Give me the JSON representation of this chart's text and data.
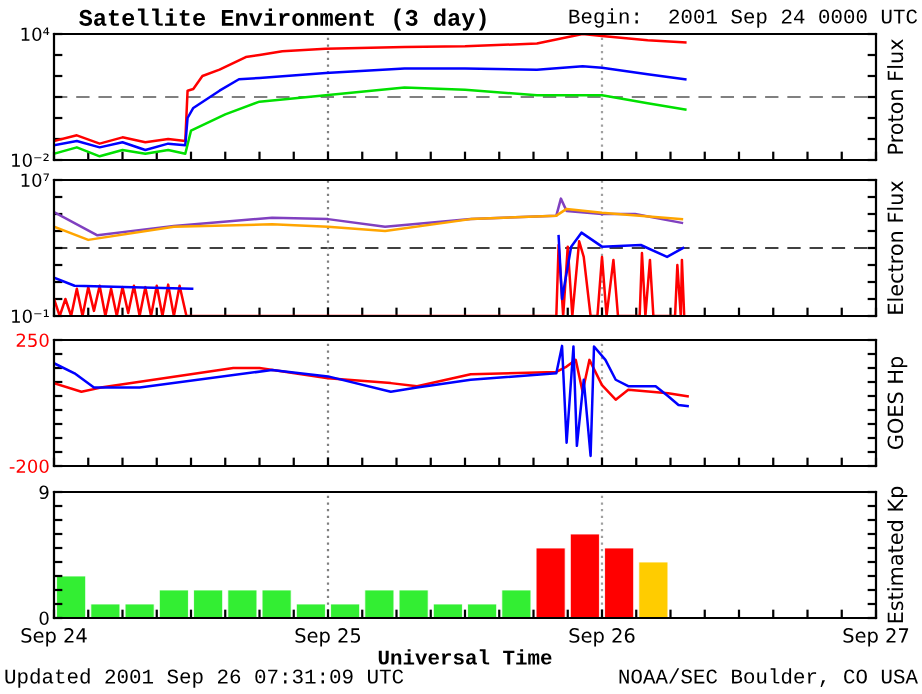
{
  "chart_data": [
    {
      "type": "line",
      "title": "Satellite Environment (3 day)",
      "annotations": [
        "Begin:  2001 Sep 24 0000 UTC"
      ],
      "ylabel": "Proton Flux",
      "log": "y",
      "ylim": [
        0.01,
        10000
      ],
      "yticks": [
        {
          "value": 0.01,
          "label": "10⁻²"
        },
        {
          "value": 0.1,
          "label": null
        },
        {
          "value": 1,
          "label": null
        },
        {
          "value": 10,
          "label": null
        },
        {
          "value": 100,
          "label": null
        },
        {
          "value": 1000,
          "label": null
        },
        {
          "value": 10000,
          "label": "10⁴"
        }
      ],
      "xlim": [
        "2001-09-24T00:00",
        "2001-09-27T00:00"
      ],
      "xticks": [
        {
          "value": "2001-09-24T00:00",
          "label": null
        },
        {
          "value": "2001-09-24T03:00",
          "label": null
        },
        {
          "value": "2001-09-24T06:00",
          "label": null
        },
        {
          "value": "2001-09-24T09:00",
          "label": null
        },
        {
          "value": "2001-09-24T12:00",
          "label": null
        },
        {
          "value": "2001-09-24T15:00",
          "label": null
        },
        {
          "value": "2001-09-24T18:00",
          "label": null
        },
        {
          "value": "2001-09-24T21:00",
          "label": null
        },
        {
          "value": "2001-09-25T00:00",
          "label": null
        },
        {
          "value": "2001-09-25T03:00",
          "label": null
        },
        {
          "value": "2001-09-25T06:00",
          "label": null
        },
        {
          "value": "2001-09-25T09:00",
          "label": null
        },
        {
          "value": "2001-09-25T12:00",
          "label": null
        },
        {
          "value": "2001-09-25T15:00",
          "label": null
        },
        {
          "value": "2001-09-25T18:00",
          "label": null
        },
        {
          "value": "2001-09-25T21:00",
          "label": null
        },
        {
          "value": "2001-09-26T00:00",
          "label": null
        },
        {
          "value": "2001-09-26T03:00",
          "label": null
        },
        {
          "value": "2001-09-26T06:00",
          "label": null
        },
        {
          "value": "2001-09-26T09:00",
          "label": null
        },
        {
          "value": "2001-09-26T12:00",
          "label": null
        },
        {
          "value": "2001-09-26T15:00",
          "label": null
        },
        {
          "value": "2001-09-26T18:00",
          "label": null
        },
        {
          "value": "2001-09-26T21:00",
          "label": null
        },
        {
          "value": "2001-09-27T00:00",
          "label": null
        }
      ],
      "tick_labels": "y",
      "grid": false,
      "legend": false,
      "ref_lines": [
        {
          "axis": "y",
          "value": 10,
          "color": "#808080",
          "line_style": "dashed"
        },
        {
          "axis": "x",
          "value": "2001-09-25T00:00",
          "color": "#808080",
          "line_style": "dotted"
        },
        {
          "axis": "x",
          "value": "2001-09-26T00:00",
          "color": "#a0a0a0",
          "line_style": "dotted"
        }
      ],
      "series": [
        {
          "color": "#ff0000",
          "x": [
            "2001-09-24T00:00",
            "2001-09-24T02:00",
            "2001-09-24T04:00",
            "2001-09-24T06:00",
            "2001-09-24T08:00",
            "2001-09-24T10:00",
            "2001-09-24T11:30",
            "2001-09-24T11:42",
            "2001-09-24T12:12",
            "2001-09-24T13:00",
            "2001-09-24T14:30",
            "2001-09-24T16:48",
            "2001-09-24T18:00",
            "2001-09-24T20:00",
            "2001-09-24T23:48",
            "2001-09-25T06:42",
            "2001-09-25T12:00",
            "2001-09-25T18:18",
            "2001-09-25T22:18",
            "2001-09-26T00:00",
            "2001-09-26T04:00",
            "2001-09-26T07:18"
          ],
          "values": [
            0.08,
            0.15,
            0.06,
            0.12,
            0.07,
            0.1,
            0.08,
            20,
            24,
            100,
            200,
            800,
            1000,
            1500,
            2000,
            2400,
            2600,
            3500,
            10000,
            8000,
            5000,
            4000
          ]
        },
        {
          "color": "#0000ff",
          "x": [
            "2001-09-24T00:00",
            "2001-09-24T02:00",
            "2001-09-24T04:00",
            "2001-09-24T06:00",
            "2001-09-24T08:00",
            "2001-09-24T10:00",
            "2001-09-24T11:30",
            "2001-09-24T11:42",
            "2001-09-24T12:12",
            "2001-09-24T14:30",
            "2001-09-24T16:12",
            "2001-09-24T18:00",
            "2001-09-24T23:48",
            "2001-09-25T06:42",
            "2001-09-25T12:00",
            "2001-09-25T18:18",
            "2001-09-25T22:18",
            "2001-09-26T00:00",
            "2001-09-26T04:00",
            "2001-09-26T07:18"
          ],
          "values": [
            0.05,
            0.08,
            0.04,
            0.07,
            0.03,
            0.06,
            0.05,
            1,
            3,
            20,
            70,
            80,
            140,
            230,
            230,
            200,
            290,
            250,
            120,
            70
          ]
        },
        {
          "color": "#00e000",
          "x": [
            "2001-09-24T00:00",
            "2001-09-24T02:00",
            "2001-09-24T04:00",
            "2001-09-24T06:00",
            "2001-09-24T08:00",
            "2001-09-24T10:00",
            "2001-09-24T11:30",
            "2001-09-24T12:00",
            "2001-09-24T15:00",
            "2001-09-24T18:00",
            "2001-09-24T23:48",
            "2001-09-25T06:42",
            "2001-09-25T12:00",
            "2001-09-25T18:18",
            "2001-09-26T00:00",
            "2001-09-26T04:00",
            "2001-09-26T07:18"
          ],
          "values": [
            0.02,
            0.04,
            0.015,
            0.03,
            0.02,
            0.03,
            0.02,
            0.25,
            1.5,
            6,
            12,
            28,
            22,
            12,
            12,
            5,
            2.5
          ]
        }
      ]
    },
    {
      "type": "line",
      "ylabel": "Electron Flux",
      "log": "y",
      "ylim": [
        0.1,
        10000000
      ],
      "yticks": [
        {
          "value": 0.1,
          "label": "10⁻¹"
        },
        {
          "value": 1,
          "label": null
        },
        {
          "value": 10,
          "label": null
        },
        {
          "value": 100,
          "label": null
        },
        {
          "value": 1000,
          "label": null
        },
        {
          "value": 10000,
          "label": null
        },
        {
          "value": 100000,
          "label": null
        },
        {
          "value": 1000000,
          "label": null
        },
        {
          "value": 10000000,
          "label": "10⁷"
        }
      ],
      "xlim": [
        "2001-09-24T00:00",
        "2001-09-27T00:00"
      ],
      "xticks": [
        {
          "value": "2001-09-24T00:00",
          "label": null
        },
        {
          "value": "2001-09-24T03:00",
          "label": null
        },
        {
          "value": "2001-09-24T06:00",
          "label": null
        },
        {
          "value": "2001-09-24T09:00",
          "label": null
        },
        {
          "value": "2001-09-24T12:00",
          "label": null
        },
        {
          "value": "2001-09-24T15:00",
          "label": null
        },
        {
          "value": "2001-09-24T18:00",
          "label": null
        },
        {
          "value": "2001-09-24T21:00",
          "label": null
        },
        {
          "value": "2001-09-25T00:00",
          "label": null
        },
        {
          "value": "2001-09-25T03:00",
          "label": null
        },
        {
          "value": "2001-09-25T06:00",
          "label": null
        },
        {
          "value": "2001-09-25T09:00",
          "label": null
        },
        {
          "value": "2001-09-25T12:00",
          "label": null
        },
        {
          "value": "2001-09-25T15:00",
          "label": null
        },
        {
          "value": "2001-09-25T18:00",
          "label": null
        },
        {
          "value": "2001-09-25T21:00",
          "label": null
        },
        {
          "value": "2001-09-26T00:00",
          "label": null
        },
        {
          "value": "2001-09-26T03:00",
          "label": null
        },
        {
          "value": "2001-09-26T06:00",
          "label": null
        },
        {
          "value": "2001-09-26T09:00",
          "label": null
        },
        {
          "value": "2001-09-26T12:00",
          "label": null
        },
        {
          "value": "2001-09-26T15:00",
          "label": null
        },
        {
          "value": "2001-09-26T18:00",
          "label": null
        },
        {
          "value": "2001-09-26T21:00",
          "label": null
        },
        {
          "value": "2001-09-27T00:00",
          "label": null
        }
      ],
      "tick_labels": "y",
      "grid": false,
      "legend": false,
      "ref_lines": [
        {
          "axis": "y",
          "value": 1000,
          "color": "#404040",
          "line_style": "dashed"
        },
        {
          "axis": "x",
          "value": "2001-09-25T00:00",
          "color": "#808080",
          "line_style": "dotted"
        },
        {
          "axis": "x",
          "value": "2001-09-26T00:00",
          "color": "#a0a0a0",
          "line_style": "dotted"
        }
      ],
      "series": [
        {
          "color": "#8040c0",
          "x": [
            "2001-09-24T00:00",
            "2001-09-24T03:48",
            "2001-09-24T10:30",
            "2001-09-24T19:06",
            "2001-09-25T00:00",
            "2001-09-25T05:00",
            "2001-09-25T12:30",
            "2001-09-25T20:00",
            "2001-09-25T20:24",
            "2001-09-25T20:54",
            "2001-09-26T00:00",
            "2001-09-26T02:54",
            "2001-09-26T07:00"
          ],
          "values": [
            130000,
            5600,
            20000,
            60000,
            50000,
            18000,
            50000,
            80000,
            800000,
            150000,
            100000,
            100000,
            30000
          ]
        },
        {
          "color": "#ffa500",
          "x": [
            "2001-09-24T00:00",
            "2001-09-24T03:00",
            "2001-09-24T10:30",
            "2001-09-24T19:06",
            "2001-09-25T00:00",
            "2001-09-25T05:00",
            "2001-09-25T12:30",
            "2001-09-25T20:00",
            "2001-09-25T20:54",
            "2001-09-26T00:00",
            "2001-09-26T07:00"
          ],
          "values": [
            18000,
            3000,
            18000,
            25000,
            18000,
            10000,
            50000,
            80000,
            200000,
            120000,
            50000
          ]
        },
        {
          "color": "#ff0000",
          "x": [
            "2001-09-24T00:00",
            "2001-09-24T00:30",
            "2001-09-24T01:00",
            "2001-09-24T01:30",
            "2001-09-24T02:00",
            "2001-09-24T02:30",
            "2001-09-24T03:00",
            "2001-09-24T03:30",
            "2001-09-24T04:00",
            "2001-09-24T04:30",
            "2001-09-24T05:00",
            "2001-09-24T05:30",
            "2001-09-24T06:00",
            "2001-09-24T06:30",
            "2001-09-24T07:00",
            "2001-09-24T07:30",
            "2001-09-24T08:00",
            "2001-09-24T08:30",
            "2001-09-24T09:00",
            "2001-09-24T09:30",
            "2001-09-24T10:00",
            "2001-09-24T10:30",
            "2001-09-24T11:00",
            "2001-09-24T11:36",
            "2001-09-25T20:00",
            "2001-09-25T20:12",
            "2001-09-25T20:36",
            "2001-09-25T21:00",
            "2001-09-25T21:24",
            "2001-09-25T22:00",
            "2001-09-25T22:24",
            "2001-09-25T23:00",
            "2001-09-25T23:36",
            "2001-09-26T00:00",
            "2001-09-26T00:24",
            "2001-09-26T01:00",
            "2001-09-26T01:24",
            "2001-09-26T03:18",
            "2001-09-26T03:30",
            "2001-09-26T03:48",
            "2001-09-26T04:12",
            "2001-09-26T04:30",
            "2001-09-26T06:24",
            "2001-09-26T06:36",
            "2001-09-26T06:54",
            "2001-09-26T07:00",
            "2001-09-26T07:12"
          ],
          "values": [
            1,
            0.1,
            1,
            0.1,
            4,
            0.1,
            5,
            0.2,
            6,
            0.1,
            4,
            0.1,
            5,
            0.15,
            6,
            0.1,
            5,
            0.1,
            6,
            0.1,
            7,
            0.1,
            6,
            0.1,
            0.1,
            1500,
            0.1,
            1200,
            0.1,
            2500,
            300,
            0.1,
            0.1,
            300,
            0.1,
            200,
            0.1,
            0.1,
            500,
            0.1,
            200,
            0.1,
            0.1,
            100,
            0.1,
            200,
            0.1
          ]
        },
        {
          "color": "#0000ff",
          "x": [
            "2001-09-24T00:00",
            "2001-09-24T01:48",
            "2001-09-24T12:06",
            "2001-09-24T12:30",
            "2001-09-25T20:12",
            "2001-09-25T20:30",
            "2001-09-25T21:18",
            "2001-09-25T22:12",
            "2001-09-26T00:00",
            "2001-09-26T03:24",
            "2001-09-26T05:42",
            "2001-09-26T07:06"
          ],
          "values": [
            18,
            6,
            4,
            null,
            5000,
            1,
            1200,
            8000,
            1200,
            1500,
            300,
            1000
          ]
        }
      ]
    },
    {
      "type": "line",
      "ylabel": "GOES Hp",
      "ylim": [
        -200,
        250
      ],
      "yticks": [
        -200,
        {
          "value": -150,
          "label": null
        },
        {
          "value": -100,
          "label": null
        },
        {
          "value": -50,
          "label": null
        },
        {
          "value": 0,
          "label": null
        },
        {
          "value": 50,
          "label": null
        },
        {
          "value": 100,
          "label": null
        },
        {
          "value": 150,
          "label": null
        },
        {
          "value": 200,
          "label": null
        },
        250
      ],
      "xlim": [
        "2001-09-24T00:00",
        "2001-09-27T00:00"
      ],
      "xticks": [
        {
          "value": "2001-09-24T00:00",
          "label": null
        },
        {
          "value": "2001-09-24T03:00",
          "label": null
        },
        {
          "value": "2001-09-24T06:00",
          "label": null
        },
        {
          "value": "2001-09-24T09:00",
          "label": null
        },
        {
          "value": "2001-09-24T12:00",
          "label": null
        },
        {
          "value": "2001-09-24T15:00",
          "label": null
        },
        {
          "value": "2001-09-24T18:00",
          "label": null
        },
        {
          "value": "2001-09-24T21:00",
          "label": null
        },
        {
          "value": "2001-09-25T00:00",
          "label": null
        },
        {
          "value": "2001-09-25T03:00",
          "label": null
        },
        {
          "value": "2001-09-25T06:00",
          "label": null
        },
        {
          "value": "2001-09-25T09:00",
          "label": null
        },
        {
          "value": "2001-09-25T12:00",
          "label": null
        },
        {
          "value": "2001-09-25T15:00",
          "label": null
        },
        {
          "value": "2001-09-25T18:00",
          "label": null
        },
        {
          "value": "2001-09-25T21:00",
          "label": null
        },
        {
          "value": "2001-09-26T00:00",
          "label": null
        },
        {
          "value": "2001-09-26T03:00",
          "label": null
        },
        {
          "value": "2001-09-26T06:00",
          "label": null
        },
        {
          "value": "2001-09-26T09:00",
          "label": null
        },
        {
          "value": "2001-09-26T12:00",
          "label": null
        },
        {
          "value": "2001-09-26T15:00",
          "label": null
        },
        {
          "value": "2001-09-26T18:00",
          "label": null
        },
        {
          "value": "2001-09-26T21:00",
          "label": null
        },
        {
          "value": "2001-09-27T00:00",
          "label": null
        }
      ],
      "tick_labels": "y",
      "grid": false,
      "legend": false,
      "ref_lines": [
        {
          "axis": "x",
          "value": "2001-09-25T00:00",
          "color": "#808080",
          "line_style": "dotted"
        },
        {
          "axis": "x",
          "value": "2001-09-26T00:00",
          "color": "#a0a0a0",
          "line_style": "dotted"
        }
      ],
      "series": [
        {
          "color": "#ff0000",
          "x": [
            "2001-09-24T00:00",
            "2001-09-24T02:24",
            "2001-09-24T04:06",
            "2001-09-24T15:42",
            "2001-09-24T18:00",
            "2001-09-25T00:00",
            "2001-09-25T05:30",
            "2001-09-25T07:48",
            "2001-09-25T12:30",
            "2001-09-25T20:00",
            "2001-09-25T20:54",
            "2001-09-25T21:42",
            "2001-09-25T22:18",
            "2001-09-25T22:54",
            "2001-09-26T00:00",
            "2001-09-26T01:12",
            "2001-09-26T02:18",
            "2001-09-26T05:48",
            "2001-09-26T07:30"
          ],
          "values": [
            96,
            65,
            80,
            150,
            150,
            113,
            96,
            85,
            128,
            136,
            155,
            179,
            65,
            179,
            89,
            37,
            72,
            60,
            49
          ]
        },
        {
          "color": "#0000ff",
          "x": [
            "2001-09-24T00:00",
            "2001-09-24T01:48",
            "2001-09-24T03:30",
            "2001-09-24T07:30",
            "2001-09-24T19:06",
            "2001-09-25T00:00",
            "2001-09-25T05:30",
            "2001-09-25T07:48",
            "2001-09-25T12:30",
            "2001-09-25T20:00",
            "2001-09-25T20:30",
            "2001-09-25T20:54",
            "2001-09-25T21:30",
            "2001-09-25T21:48",
            "2001-09-25T22:24",
            "2001-09-25T23:00",
            "2001-09-25T23:18",
            "2001-09-26T00:18",
            "2001-09-26T01:12",
            "2001-09-26T02:18",
            "2001-09-26T04:42",
            "2001-09-26T05:48",
            "2001-09-26T06:42",
            "2001-09-26T07:30"
          ],
          "values": [
            167,
            131,
            80,
            80,
            143,
            120,
            65,
            80,
            108,
            131,
            229,
            -117,
            227,
            -128,
            108,
            -164,
            227,
            179,
            108,
            85,
            85,
            49,
            18,
            14
          ]
        }
      ]
    },
    {
      "type": "bar",
      "ylabel": "Estimated Kp",
      "xlabel": "Universal Time",
      "annotations": [
        "Updated 2001 Sep 26 07:31:09 UTC",
        "NOAA/SEC Boulder, CO USA"
      ],
      "ylim": [
        0,
        9
      ],
      "yticks": [
        0,
        {
          "value": 1,
          "label": null
        },
        {
          "value": 2,
          "label": null
        },
        {
          "value": 3,
          "label": null
        },
        {
          "value": 4,
          "label": null
        },
        {
          "value": 5,
          "label": null
        },
        {
          "value": 6,
          "label": null
        },
        {
          "value": 7,
          "label": null
        },
        {
          "value": 8,
          "label": null
        },
        9
      ],
      "xlim": [
        "2001-09-24T00:00",
        "2001-09-27T00:00"
      ],
      "xticks": [
        {
          "value": "2001-09-24T00:00",
          "label": "Sep 24"
        },
        {
          "value": "2001-09-24T03:00",
          "label": null
        },
        {
          "value": "2001-09-24T06:00",
          "label": null
        },
        {
          "value": "2001-09-24T09:00",
          "label": null
        },
        {
          "value": "2001-09-24T12:00",
          "label": null
        },
        {
          "value": "2001-09-24T15:00",
          "label": null
        },
        {
          "value": "2001-09-24T18:00",
          "label": null
        },
        {
          "value": "2001-09-24T21:00",
          "label": null
        },
        {
          "value": "2001-09-25T00:00",
          "label": "Sep 25"
        },
        {
          "value": "2001-09-25T03:00",
          "label": null
        },
        {
          "value": "2001-09-25T06:00",
          "label": null
        },
        {
          "value": "2001-09-25T09:00",
          "label": null
        },
        {
          "value": "2001-09-25T12:00",
          "label": null
        },
        {
          "value": "2001-09-25T15:00",
          "label": null
        },
        {
          "value": "2001-09-25T18:00",
          "label": null
        },
        {
          "value": "2001-09-25T21:00",
          "label": null
        },
        {
          "value": "2001-09-26T00:00",
          "label": "Sep 26"
        },
        {
          "value": "2001-09-26T03:00",
          "label": null
        },
        {
          "value": "2001-09-26T06:00",
          "label": null
        },
        {
          "value": "2001-09-26T09:00",
          "label": null
        },
        {
          "value": "2001-09-26T12:00",
          "label": null
        },
        {
          "value": "2001-09-26T15:00",
          "label": null
        },
        {
          "value": "2001-09-26T18:00",
          "label": null
        },
        {
          "value": "2001-09-26T21:00",
          "label": null
        },
        {
          "value": "2001-09-27T00:00",
          "label": "Sep 27"
        }
      ],
      "grid": false,
      "legend": false,
      "ref_lines": [
        {
          "axis": "x",
          "value": "2001-09-25T00:00",
          "color": "#808080",
          "line_style": "dotted"
        },
        {
          "axis": "x",
          "value": "2001-09-26T00:00",
          "color": "#a0a0a0",
          "line_style": "dotted"
        }
      ],
      "x": [
        "2001-09-24T01:30",
        "2001-09-24T04:30",
        "2001-09-24T07:30",
        "2001-09-24T10:30",
        "2001-09-24T13:30",
        "2001-09-24T16:30",
        "2001-09-24T19:30",
        "2001-09-24T22:30",
        "2001-09-25T01:30",
        "2001-09-25T04:30",
        "2001-09-25T07:30",
        "2001-09-25T10:30",
        "2001-09-25T13:30",
        "2001-09-25T16:30",
        "2001-09-25T19:30",
        "2001-09-25T22:30",
        "2001-09-26T01:30",
        "2001-09-26T04:30"
      ],
      "values": [
        3,
        1,
        1,
        2,
        2,
        2,
        2,
        1,
        1,
        2,
        2,
        1,
        1,
        2,
        5,
        6,
        5,
        4
      ],
      "colors": [
        "#33ee33",
        "#33ee33",
        "#33ee33",
        "#33ee33",
        "#33ee33",
        "#33ee33",
        "#33ee33",
        "#33ee33",
        "#33ee33",
        "#33ee33",
        "#33ee33",
        "#33ee33",
        "#33ee33",
        "#33ee33",
        "#ff0000",
        "#ff0000",
        "#ff0000",
        "#ffcc00"
      ]
    }
  ]
}
